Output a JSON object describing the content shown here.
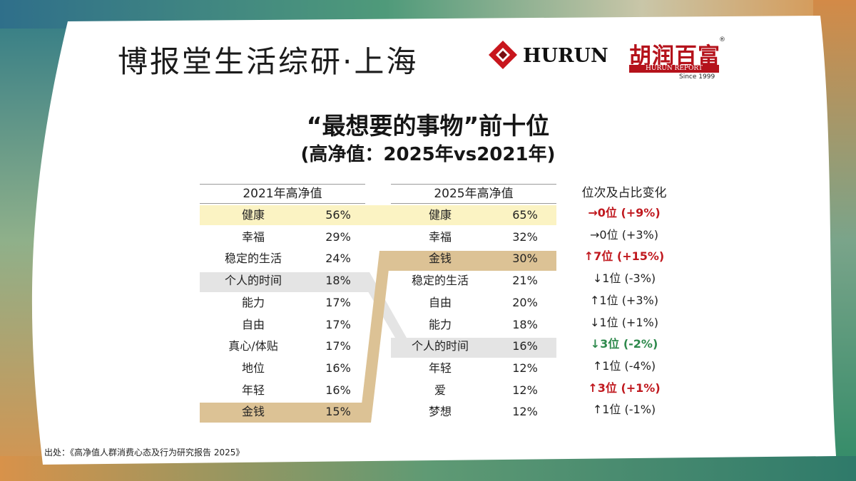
{
  "brand": {
    "text": "博报堂生活综研·上海"
  },
  "logos": {
    "hurun_text": "HURUN",
    "hurun_cn": "胡润百富",
    "hurun_report": "HURUN REPORT",
    "since": "Since 1999",
    "registered": "®"
  },
  "title": "“最想要的事物”前十位",
  "subtitle": "(高净值：2025年vs2021年)",
  "table2021": {
    "header": "2021年高净值",
    "rows": [
      {
        "name": "健康",
        "pct": "56%"
      },
      {
        "name": "幸福",
        "pct": "29%"
      },
      {
        "name": "稳定的生活",
        "pct": "24%"
      },
      {
        "name": "个人的时间",
        "pct": "18%"
      },
      {
        "name": "能力",
        "pct": "17%"
      },
      {
        "name": "自由",
        "pct": "17%"
      },
      {
        "name": "真心/体贴",
        "pct": "17%"
      },
      {
        "name": "地位",
        "pct": "16%"
      },
      {
        "name": "年轻",
        "pct": "16%"
      },
      {
        "name": "金钱",
        "pct": "15%"
      }
    ]
  },
  "table2025": {
    "header": "2025年高净值",
    "rows": [
      {
        "name": "健康",
        "pct": "65%"
      },
      {
        "name": "幸福",
        "pct": "32%"
      },
      {
        "name": "金钱",
        "pct": "30%"
      },
      {
        "name": "稳定的生活",
        "pct": "21%"
      },
      {
        "name": "自由",
        "pct": "20%"
      },
      {
        "name": "能力",
        "pct": "18%"
      },
      {
        "name": "个人的时间",
        "pct": "16%"
      },
      {
        "name": "年轻",
        "pct": "12%"
      },
      {
        "name": "爱",
        "pct": "12%"
      },
      {
        "name": "梦想",
        "pct": "12%"
      }
    ]
  },
  "changes": {
    "header": "位次及占比变化",
    "rows": [
      {
        "text": "→0位 (+9%)",
        "tone": "red"
      },
      {
        "text": "→0位 (+3%)",
        "tone": "normal"
      },
      {
        "text": "↑7位 (+15%)",
        "tone": "red"
      },
      {
        "text": "↓1位 (-3%)",
        "tone": "normal"
      },
      {
        "text": "↑1位 (+3%)",
        "tone": "normal"
      },
      {
        "text": "↓1位 (+1%)",
        "tone": "normal"
      },
      {
        "text": "↓3位 (-2%)",
        "tone": "green"
      },
      {
        "text": "↑1位 (-4%)",
        "tone": "normal"
      },
      {
        "text": "↑3位 (+1%)",
        "tone": "red"
      },
      {
        "text": "↑1位 (-1%)",
        "tone": "normal"
      }
    ]
  },
  "colors": {
    "health_highlight": "#fbf3c3",
    "money_highlight": "#dcc295",
    "personal_time_highlight": "#e4e4e4",
    "red": "#c0191f",
    "green": "#2f8a4d"
  },
  "source": "出处：《高净值人群消费心态及行为研究报告 2025》"
}
